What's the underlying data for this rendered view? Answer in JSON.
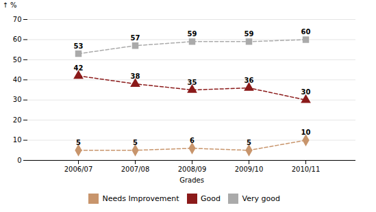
{
  "chart_data": {
    "type": "line",
    "categories": [
      "2006/07",
      "2007/08",
      "2008/09",
      "2009/10",
      "2010/11"
    ],
    "series": [
      {
        "name": "Needs Improvement",
        "color": "#c8956c",
        "values": [
          5,
          5,
          6,
          5,
          10
        ],
        "marker": "diamond",
        "line_style": "dashed"
      },
      {
        "name": "Good",
        "color": "#8b1a1a",
        "values": [
          42,
          38,
          35,
          36,
          30
        ],
        "marker": "triangle",
        "line_style": "dashed"
      },
      {
        "name": "Very good",
        "color": "#aaaaaa",
        "values": [
          53,
          57,
          59,
          59,
          60
        ],
        "marker": "square",
        "line_style": "dashed"
      }
    ],
    "xlabel": "Grades",
    "ylabel": "%",
    "ylim": [
      0,
      70
    ],
    "yticks": [
      0,
      10,
      20,
      30,
      40,
      50,
      60,
      70
    ],
    "grid": true,
    "legend": "bottom",
    "data_labels": true
  }
}
